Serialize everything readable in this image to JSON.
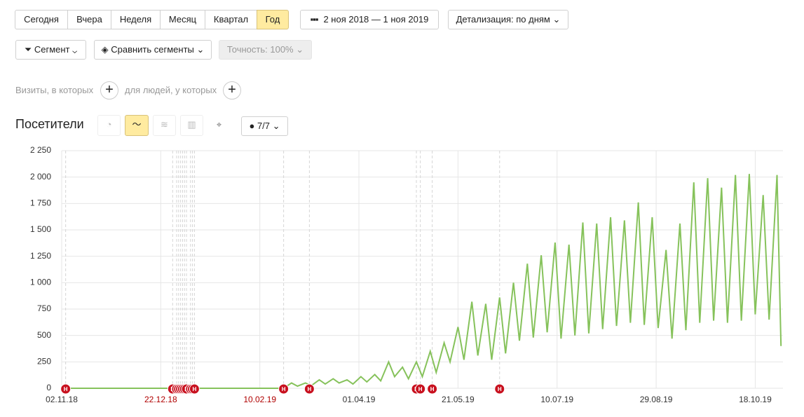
{
  "toolbar": {
    "periods": [
      "Сегодня",
      "Вчера",
      "Неделя",
      "Месяц",
      "Квартал",
      "Год"
    ],
    "selected": 5,
    "date_range": "2 ноя 2018 — 1 ноя 2019",
    "detail": "Детализация: по дням",
    "segment": "Сегмент",
    "compare": "Сравнить сегменты",
    "accuracy": "Точность: 100%"
  },
  "filters": {
    "visits": "Визиты, в которых",
    "people": "для людей, у которых"
  },
  "chart_header": {
    "title": "Посетители",
    "counter": "7/7"
  },
  "chart_data": {
    "type": "line",
    "color": "#86c25b",
    "grid": true,
    "x": [
      0,
      112,
      116,
      119,
      123,
      126,
      130,
      133,
      137,
      140,
      144,
      147,
      151,
      154,
      158,
      161,
      165,
      168,
      172,
      175,
      179,
      182,
      186,
      189,
      193,
      196,
      200,
      203,
      207,
      210,
      214,
      217,
      221,
      224,
      228,
      231,
      235,
      238,
      242,
      245,
      249,
      252,
      256,
      259,
      263,
      266,
      270,
      273,
      277,
      280,
      284,
      287,
      291,
      294,
      298,
      301,
      305,
      308,
      312,
      315,
      319,
      322,
      326,
      329,
      333,
      336,
      340,
      343,
      347,
      350,
      354,
      357,
      361,
      363
    ],
    "values": [
      0,
      0,
      50,
      20,
      50,
      25,
      80,
      40,
      90,
      50,
      80,
      40,
      110,
      60,
      130,
      70,
      250,
      110,
      200,
      90,
      250,
      110,
      350,
      150,
      430,
      250,
      580,
      270,
      820,
      310,
      800,
      270,
      860,
      330,
      1000,
      450,
      1180,
      480,
      1260,
      530,
      1380,
      470,
      1360,
      500,
      1570,
      520,
      1560,
      560,
      1620,
      590,
      1590,
      620,
      1760,
      600,
      1620,
      570,
      1310,
      470,
      1560,
      550,
      1950,
      620,
      1990,
      640,
      1900,
      620,
      2020,
      640,
      2030,
      700,
      1830,
      650,
      2020,
      400
    ],
    "xlim": [
      0,
      364
    ],
    "xticks": [
      {
        "value": 0,
        "label": "02.11.18",
        "color": "#333333"
      },
      {
        "value": 50,
        "label": "22.12.18",
        "color": "#b00000"
      },
      {
        "value": 100,
        "label": "10.02.19",
        "color": "#b00000"
      },
      {
        "value": 150,
        "label": "01.04.19",
        "color": "#333333"
      },
      {
        "value": 200,
        "label": "21.05.19",
        "color": "#333333"
      },
      {
        "value": 250,
        "label": "10.07.19",
        "color": "#333333"
      },
      {
        "value": 300,
        "label": "29.08.19",
        "color": "#333333"
      },
      {
        "value": 350,
        "label": "18.10.19",
        "color": "#333333"
      }
    ],
    "ylim": [
      0,
      2250
    ],
    "yticks": [
      0,
      {
        "value": 250,
        "label": "250"
      },
      {
        "value": 500,
        "label": "500"
      },
      {
        "value": 750,
        "label": "750"
      },
      {
        "value": 1000,
        "label": "1 000"
      },
      {
        "value": 1250,
        "label": "1 250"
      },
      {
        "value": 1500,
        "label": "1 500"
      },
      {
        "value": 1750,
        "label": "1 750"
      },
      {
        "value": 2000,
        "label": "2 000"
      },
      {
        "value": 2250,
        "label": "2 250"
      }
    ],
    "markers": {
      "label": "Н",
      "color": "#c8101e",
      "x": [
        2,
        56,
        58,
        59,
        60,
        61,
        62,
        63,
        65,
        66,
        67,
        112,
        125,
        179,
        181,
        187,
        221
      ]
    }
  }
}
